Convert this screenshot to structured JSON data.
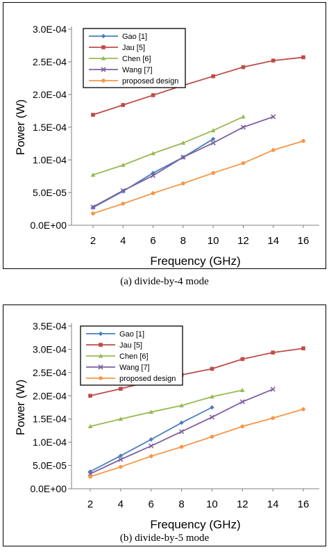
{
  "captions": [
    "(a)    divide-by-4 mode",
    "(b)    divide-by-5 mode"
  ],
  "chart_data": [
    {
      "type": "line",
      "xlabel": "Frequency (GHz)",
      "ylabel": "Power (W)",
      "x_ticks": [
        "2",
        "4",
        "6",
        "8",
        "10",
        "12",
        "14",
        "16"
      ],
      "y_ticks": [
        "0.0E+00",
        "5.0E-05",
        "1.0E-04",
        "1.5E-04",
        "2.0E-04",
        "2.5E-04",
        "3.0E-04"
      ],
      "ylim": [
        0,
        0.0003
      ],
      "xlim": [
        2,
        16
      ],
      "grid": false,
      "legend": "top-left",
      "series": [
        {
          "name": "Gao [1]",
          "color": "#4a7ebb",
          "marker": "diamond",
          "x": [
            2,
            4,
            6,
            8,
            10
          ],
          "y": [
            2.7e-05,
            5.2e-05,
            8e-05,
            0.000104,
            0.000132
          ]
        },
        {
          "name": "Jau [5]",
          "color": "#be4b48",
          "marker": "square",
          "x": [
            2,
            4,
            6,
            8,
            10,
            12,
            14,
            16
          ],
          "y": [
            0.000169,
            0.000184,
            0.000199,
            0.000214,
            0.000228,
            0.000242,
            0.000252,
            0.000257
          ]
        },
        {
          "name": "Chen [6]",
          "color": "#98b954",
          "marker": "triangle",
          "x": [
            2,
            4,
            6,
            8,
            10,
            12
          ],
          "y": [
            7.7e-05,
            9.2e-05,
            0.00011,
            0.000126,
            0.000145,
            0.000166
          ]
        },
        {
          "name": "Wang [7]",
          "color": "#7d60a0",
          "marker": "x",
          "x": [
            2,
            4,
            6,
            8,
            10,
            12,
            14
          ],
          "y": [
            2.8e-05,
            5.3e-05,
            7.6e-05,
            0.000104,
            0.000126,
            0.00015,
            0.000166
          ]
        },
        {
          "name": "proposed design",
          "color": "#f79646",
          "marker": "circle",
          "x": [
            2,
            4,
            6,
            8,
            10,
            12,
            14,
            16
          ],
          "y": [
            1.8e-05,
            3.3e-05,
            4.9e-05,
            6.4e-05,
            8e-05,
            9.5e-05,
            0.000115,
            0.000129
          ]
        }
      ]
    },
    {
      "type": "line",
      "xlabel": "Frequency (GHz)",
      "ylabel": "Power (W)",
      "x_ticks": [
        "2",
        "4",
        "6",
        "8",
        "10",
        "12",
        "14",
        "16"
      ],
      "y_ticks": [
        "0.0E+00",
        "5.0E-05",
        "1.0E-04",
        "1.5E-04",
        "2.0E-04",
        "2.5E-04",
        "3.0E-04",
        "3.5E-04"
      ],
      "ylim": [
        0,
        0.00035
      ],
      "xlim": [
        2,
        16
      ],
      "grid": false,
      "legend": "top-left",
      "series": [
        {
          "name": "Gao [1]",
          "color": "#4a7ebb",
          "marker": "diamond",
          "x": [
            2,
            4,
            6,
            8,
            10
          ],
          "y": [
            3.7e-05,
            7.1e-05,
            0.000106,
            0.000142,
            0.000175
          ]
        },
        {
          "name": "Jau [5]",
          "color": "#be4b48",
          "marker": "square",
          "x": [
            2,
            4,
            6,
            8,
            10,
            12,
            14,
            16
          ],
          "y": [
            0.0002,
            0.000215,
            0.000232,
            0.000245,
            0.000258,
            0.000279,
            0.000293,
            0.000302
          ]
        },
        {
          "name": "Chen [6]",
          "color": "#98b954",
          "marker": "triangle",
          "x": [
            2,
            4,
            6,
            8,
            10,
            12
          ],
          "y": [
            0.000134,
            0.00015,
            0.000165,
            0.000179,
            0.000198,
            0.000212
          ]
        },
        {
          "name": "Wang [7]",
          "color": "#7d60a0",
          "marker": "x",
          "x": [
            2,
            4,
            6,
            8,
            10,
            12,
            14
          ],
          "y": [
            3.2e-05,
            6.3e-05,
            9.2e-05,
            0.000123,
            0.000154,
            0.000187,
            0.000214
          ]
        },
        {
          "name": "proposed design",
          "color": "#f79646",
          "marker": "circle",
          "x": [
            2,
            4,
            6,
            8,
            10,
            12,
            14,
            16
          ],
          "y": [
            2.6e-05,
            4.7e-05,
            7e-05,
            9e-05,
            0.000112,
            0.000134,
            0.000152,
            0.000171
          ]
        }
      ]
    }
  ]
}
